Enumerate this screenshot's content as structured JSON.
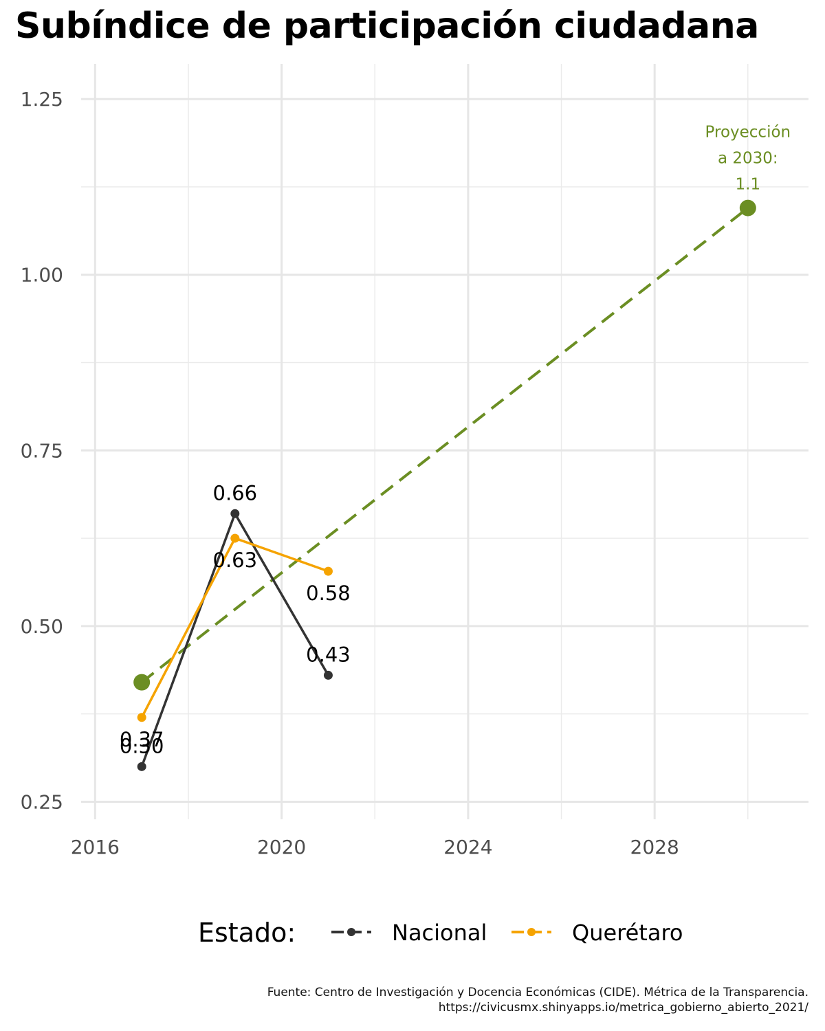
{
  "title": "Subíndice de participación ciudadana",
  "chart_data": {
    "type": "line",
    "title": "Subíndice de participación ciudadana",
    "xlabel": "",
    "ylabel": "",
    "xlim": [
      2015.7,
      2031.3
    ],
    "ylim": [
      0.225,
      1.3
    ],
    "x_ticks": [
      2016,
      2020,
      2024,
      2028
    ],
    "x_tick_labels": [
      "2016",
      "2020",
      "2024",
      "2028"
    ],
    "x_minor": [
      2018,
      2022,
      2026,
      2030
    ],
    "y_ticks": [
      0.25,
      0.5,
      0.75,
      1.0,
      1.25
    ],
    "y_tick_labels": [
      "0.25",
      "0.50",
      "0.75",
      "1.00",
      "1.25"
    ],
    "y_minor": [
      0.375,
      0.625,
      0.875,
      1.125
    ],
    "grid": true,
    "legend_position": "bottom",
    "legend_title": "Estado:",
    "series": [
      {
        "name": "Nacional",
        "color": "#333333",
        "x": [
          2017,
          2019,
          2021
        ],
        "y": [
          0.3,
          0.66,
          0.43
        ],
        "labels": [
          "0.30",
          "0.66",
          "0.43"
        ],
        "label_pos": [
          "above",
          "above",
          "above"
        ]
      },
      {
        "name": "Querétaro",
        "color": "#F5A300",
        "x": [
          2017,
          2019,
          2021
        ],
        "y": [
          0.37,
          0.625,
          0.578
        ],
        "labels": [
          "0.37",
          "0.63",
          "0.58"
        ],
        "label_pos": [
          "below",
          "below",
          "below"
        ]
      }
    ],
    "projection": {
      "color": "#6B8E23",
      "x": [
        2017,
        2030
      ],
      "y": [
        0.42,
        1.095
      ],
      "style": "dashed",
      "annotation_lines": [
        "Proyección",
        "a 2030:",
        "1.1"
      ]
    }
  },
  "source": {
    "line1": "Fuente: Centro de Investigación y Docencia Económicas (CIDE). Métrica de la Transparencia.",
    "line2": "https://civicusmx.shinyapps.io/metrica_gobierno_abierto_2021/"
  }
}
